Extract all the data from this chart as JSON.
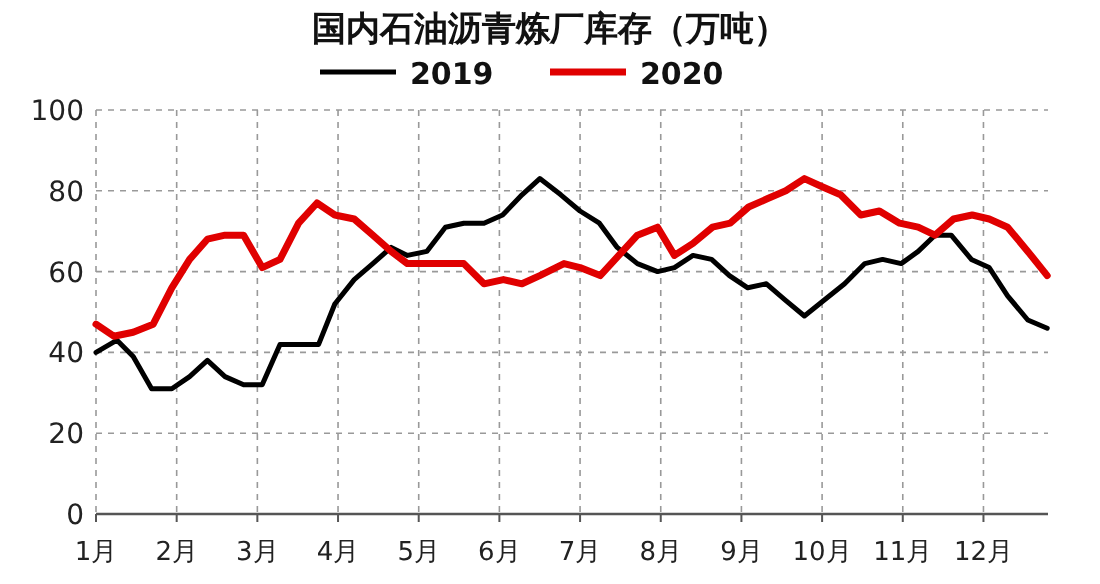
{
  "chart_data": {
    "type": "line",
    "title": "国内石油沥青炼厂库存（万吨）",
    "xlim": [
      1,
      12.8
    ],
    "xticks": [
      {
        "value": 1,
        "label": "1月"
      },
      {
        "value": 2,
        "label": "2月"
      },
      {
        "value": 3,
        "label": "3月"
      },
      {
        "value": 4,
        "label": "4月"
      },
      {
        "value": 5,
        "label": "5月"
      },
      {
        "value": 6,
        "label": "6月"
      },
      {
        "value": 7,
        "label": "7月"
      },
      {
        "value": 8,
        "label": "8月"
      },
      {
        "value": 9,
        "label": "9月"
      },
      {
        "value": 10,
        "label": "10月"
      },
      {
        "value": 11,
        "label": "11月"
      },
      {
        "value": 12,
        "label": "12月"
      }
    ],
    "ylim": [
      0,
      100
    ],
    "yticks": [
      0,
      20,
      40,
      60,
      80,
      100
    ],
    "grid": true,
    "legend": "top",
    "marker": "none",
    "line_style": "solid",
    "series": [
      {
        "name": "2019",
        "color": "#000000",
        "x": [
          1.0,
          1.26,
          1.46,
          1.69,
          1.94,
          2.16,
          2.38,
          2.6,
          2.83,
          3.06,
          3.28,
          3.51,
          3.76,
          3.96,
          4.2,
          4.43,
          4.66,
          4.86,
          5.1,
          5.33,
          5.56,
          5.81,
          6.04,
          6.28,
          6.5,
          6.76,
          7.0,
          7.24,
          7.46,
          7.71,
          7.96,
          8.17,
          8.4,
          8.63,
          8.85,
          9.08,
          9.31,
          9.54,
          9.78,
          10.03,
          10.28,
          10.53,
          10.75,
          10.98,
          11.19,
          11.4,
          11.6,
          11.85,
          12.07,
          12.3,
          12.55,
          12.79
        ],
        "values": [
          40,
          43,
          39,
          31,
          31,
          34,
          38,
          34,
          32,
          32,
          42,
          42,
          42,
          52,
          58,
          62,
          66,
          64,
          65,
          71,
          72,
          72,
          74,
          79,
          83,
          79,
          75,
          72,
          66,
          62,
          60,
          61,
          64,
          63,
          59,
          56,
          57,
          53,
          49,
          53,
          57,
          62,
          63,
          62,
          65,
          69,
          69,
          63,
          61,
          54,
          48,
          46
        ]
      },
      {
        "name": "2020",
        "color": "#e00000",
        "x": [
          1.0,
          1.22,
          1.46,
          1.71,
          1.94,
          2.16,
          2.38,
          2.6,
          2.83,
          3.06,
          3.28,
          3.51,
          3.74,
          3.96,
          4.2,
          4.43,
          4.66,
          4.86,
          5.1,
          5.56,
          5.81,
          6.05,
          6.28,
          6.5,
          6.8,
          7.0,
          7.25,
          7.48,
          7.71,
          7.96,
          8.17,
          8.4,
          8.64,
          8.86,
          9.09,
          9.32,
          9.55,
          9.78,
          10.0,
          10.23,
          10.48,
          10.71,
          10.96,
          11.19,
          11.4,
          11.63,
          11.86,
          12.07,
          12.3,
          12.55,
          12.79
        ],
        "values": [
          47,
          44,
          45,
          47,
          56,
          63,
          68,
          69,
          69,
          61,
          63,
          72,
          77,
          74,
          73,
          69,
          65,
          62,
          62,
          62,
          57,
          58,
          57,
          59,
          62,
          61,
          59,
          64,
          69,
          71,
          64,
          67,
          71,
          72,
          76,
          78,
          80,
          83,
          81,
          79,
          74,
          75,
          72,
          71,
          69,
          73,
          74,
          73,
          71,
          65,
          59
        ]
      }
    ]
  }
}
